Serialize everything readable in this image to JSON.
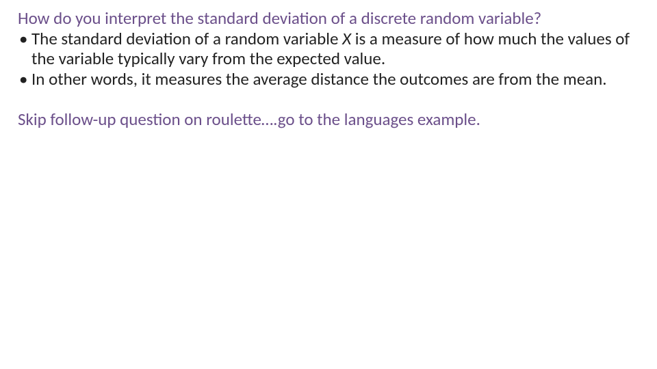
{
  "colors": {
    "heading": "#6b4f8a",
    "body": "#222222",
    "note": "#6b4f8a",
    "background": "#ffffff"
  },
  "typography": {
    "font_family": "Calibri",
    "heading_fontsize_pt": 19,
    "body_fontsize_pt": 19,
    "line_height": 1.18
  },
  "heading": "How do you interpret the standard deviation of a discrete random variable?",
  "bullets": [
    {
      "pre": "The standard deviation of a random variable ",
      "var": "X",
      "post": " is a measure of how much the values of the variable typically vary from the expected value."
    },
    {
      "pre": "In other words, it measures the average distance the outcomes are from the mean.",
      "var": "",
      "post": ""
    }
  ],
  "note": "Skip follow-up question on roulette….go to the languages example."
}
